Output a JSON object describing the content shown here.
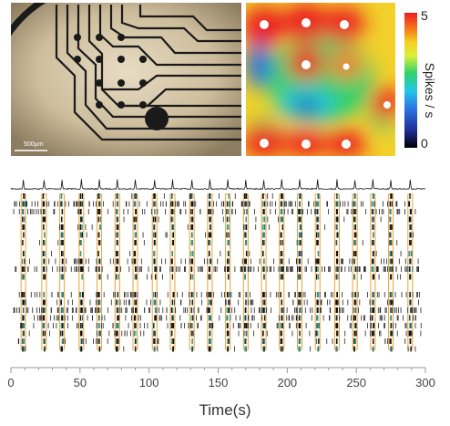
{
  "photo": {
    "scale_label": "500µm"
  },
  "heatmap": {
    "colorbar_label": "Spikes / s",
    "colorbar_ticks": [
      "5",
      "0"
    ],
    "scale_max": 5,
    "scale_min": 0
  },
  "chart_data": {
    "type": "scatter",
    "title": "",
    "xlabel": "Time(s)",
    "ylabel": "",
    "xlim": [
      0,
      300
    ],
    "xticks": [
      "0",
      "50",
      "100",
      "150",
      "200",
      "250",
      "300"
    ],
    "burst_times_s": [
      9,
      24,
      37,
      51,
      64,
      77,
      90,
      104,
      117,
      131,
      144,
      157,
      170,
      183,
      196,
      209,
      222,
      236,
      249,
      262,
      275,
      289
    ],
    "channels": 28,
    "burst_color": "#f0a030",
    "trace_color": "#111111"
  }
}
